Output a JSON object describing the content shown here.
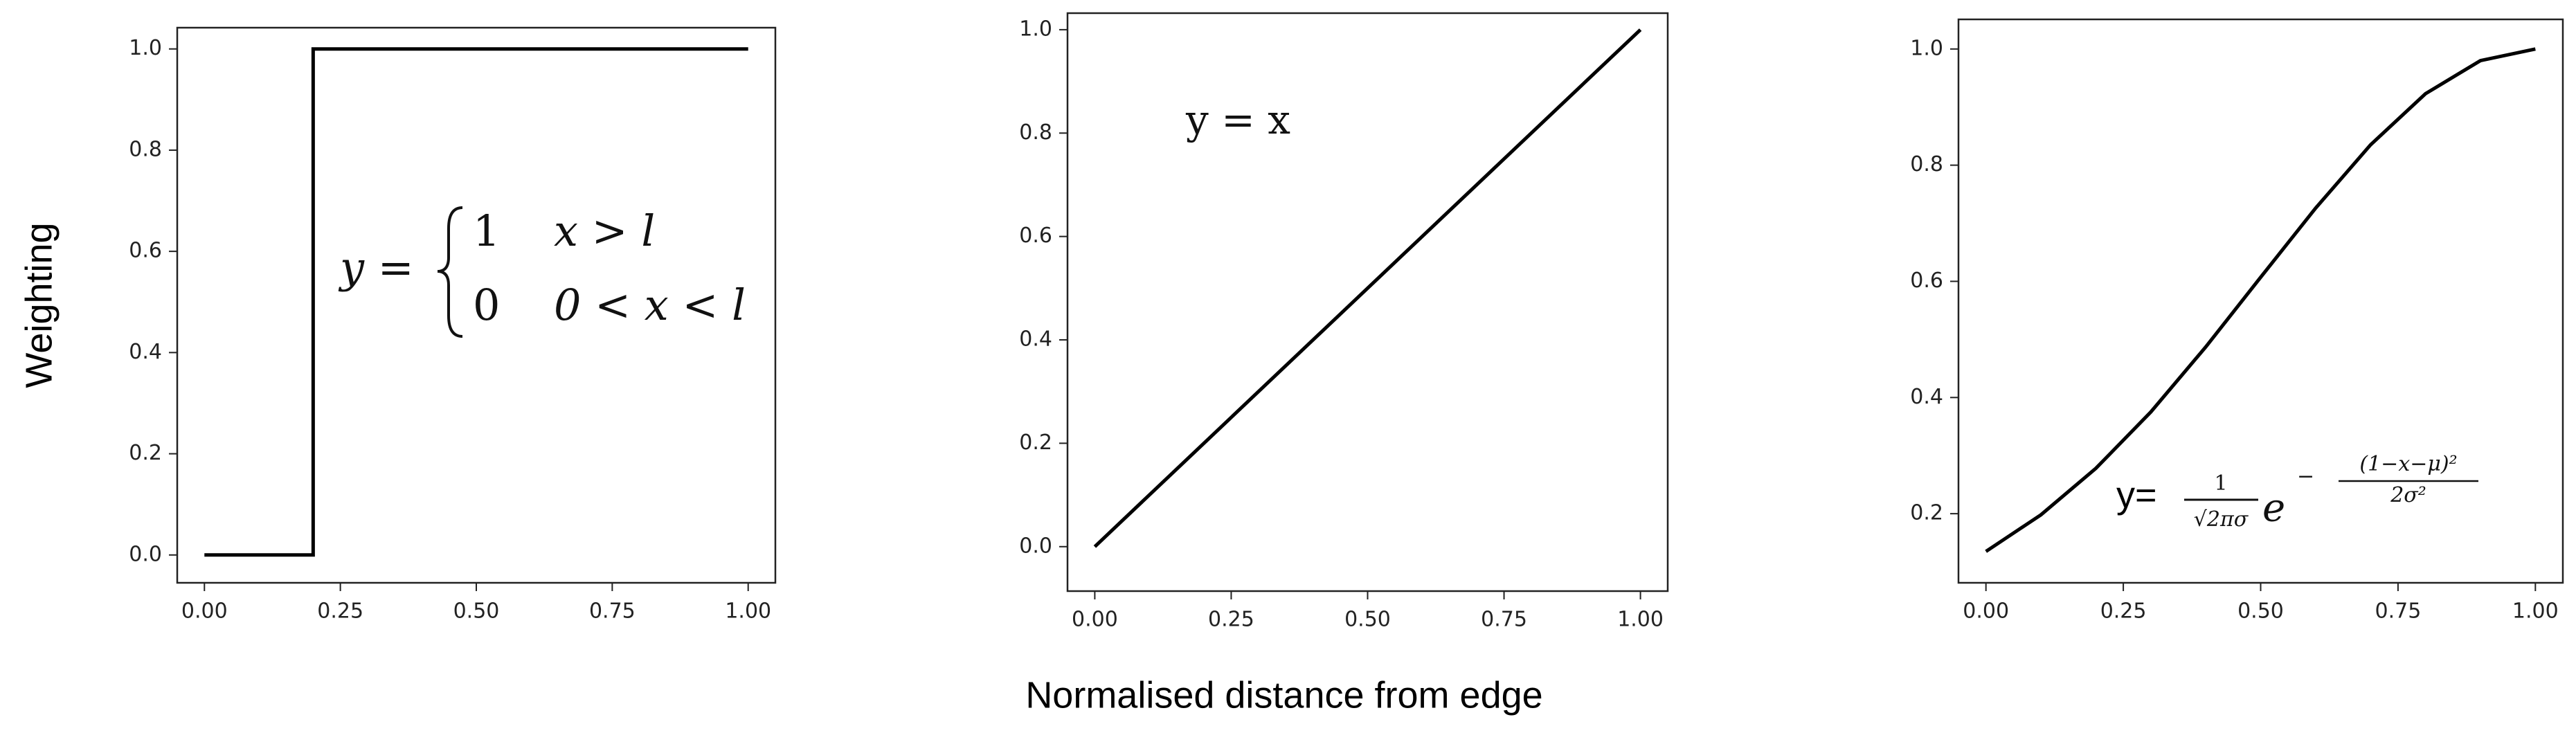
{
  "chart_data": [
    {
      "type": "line",
      "ylabel": "Weighting",
      "x": [
        0,
        0.2,
        0.2,
        1
      ],
      "values": [
        0,
        0,
        1,
        1
      ],
      "color": "#000000",
      "xlim": [
        -0.05,
        1.05
      ],
      "ylim": [
        -0.055,
        1.042
      ],
      "xticks": [
        {
          "value": 0,
          "label": "0.00"
        },
        {
          "value": 0.25,
          "label": "0.25"
        },
        {
          "value": 0.5,
          "label": "0.50"
        },
        {
          "value": 0.75,
          "label": "0.75"
        },
        {
          "value": 1,
          "label": "1.00"
        }
      ],
      "yticks": [
        {
          "value": 0,
          "label": "0.0"
        },
        0.2,
        0.4,
        0.6,
        0.8,
        {
          "value": 1,
          "label": "1.0"
        }
      ],
      "annotation": {
        "lhs": "y =",
        "case1_value": "1",
        "case1_condition": "x > l",
        "case2_value": "0",
        "case2_condition": "0 < x < l"
      }
    },
    {
      "type": "line",
      "xlabel": "Normalised distance from edge",
      "x": [
        0,
        1
      ],
      "values": [
        0,
        1
      ],
      "color": "#000000",
      "xlim": [
        -0.05,
        1.05
      ],
      "ylim": [
        -0.086,
        1.032
      ],
      "xticks": [
        {
          "value": 0,
          "label": "0.00"
        },
        {
          "value": 0.25,
          "label": "0.25"
        },
        {
          "value": 0.5,
          "label": "0.50"
        },
        {
          "value": 0.75,
          "label": "0.75"
        },
        {
          "value": 1,
          "label": "1.00"
        }
      ],
      "yticks": [
        {
          "value": 0,
          "label": "0.0"
        },
        0.2,
        0.4,
        0.6,
        0.8,
        {
          "value": 1,
          "label": "1.0"
        }
      ],
      "annotation": "y = x"
    },
    {
      "type": "line",
      "x": [
        0,
        0.1,
        0.2,
        0.3,
        0.4,
        0.5,
        0.6,
        0.7,
        0.8,
        0.9,
        1
      ],
      "values": [
        0.135,
        0.198,
        0.278,
        0.375,
        0.487,
        0.607,
        0.726,
        0.835,
        0.923,
        0.98,
        1
      ],
      "color": "#000000",
      "xlim": [
        -0.05,
        1.05
      ],
      "ylim": [
        0.081,
        1.051
      ],
      "xticks": [
        {
          "value": 0,
          "label": "0.00"
        },
        {
          "value": 0.25,
          "label": "0.25"
        },
        {
          "value": 0.5,
          "label": "0.50"
        },
        {
          "value": 0.75,
          "label": "0.75"
        },
        {
          "value": 1,
          "label": "1.00"
        }
      ],
      "yticks": [
        0.2,
        0.4,
        0.6,
        0.8,
        {
          "value": 1,
          "label": "1.0"
        }
      ],
      "annotation": {
        "lhs": "y=",
        "coef_numerator": "1",
        "coef_denominator": "√2πσ",
        "base": "e",
        "exponent_sign": "−",
        "exponent_numerator": "(1−x−μ)²",
        "exponent_denominator": "2σ²"
      }
    }
  ]
}
